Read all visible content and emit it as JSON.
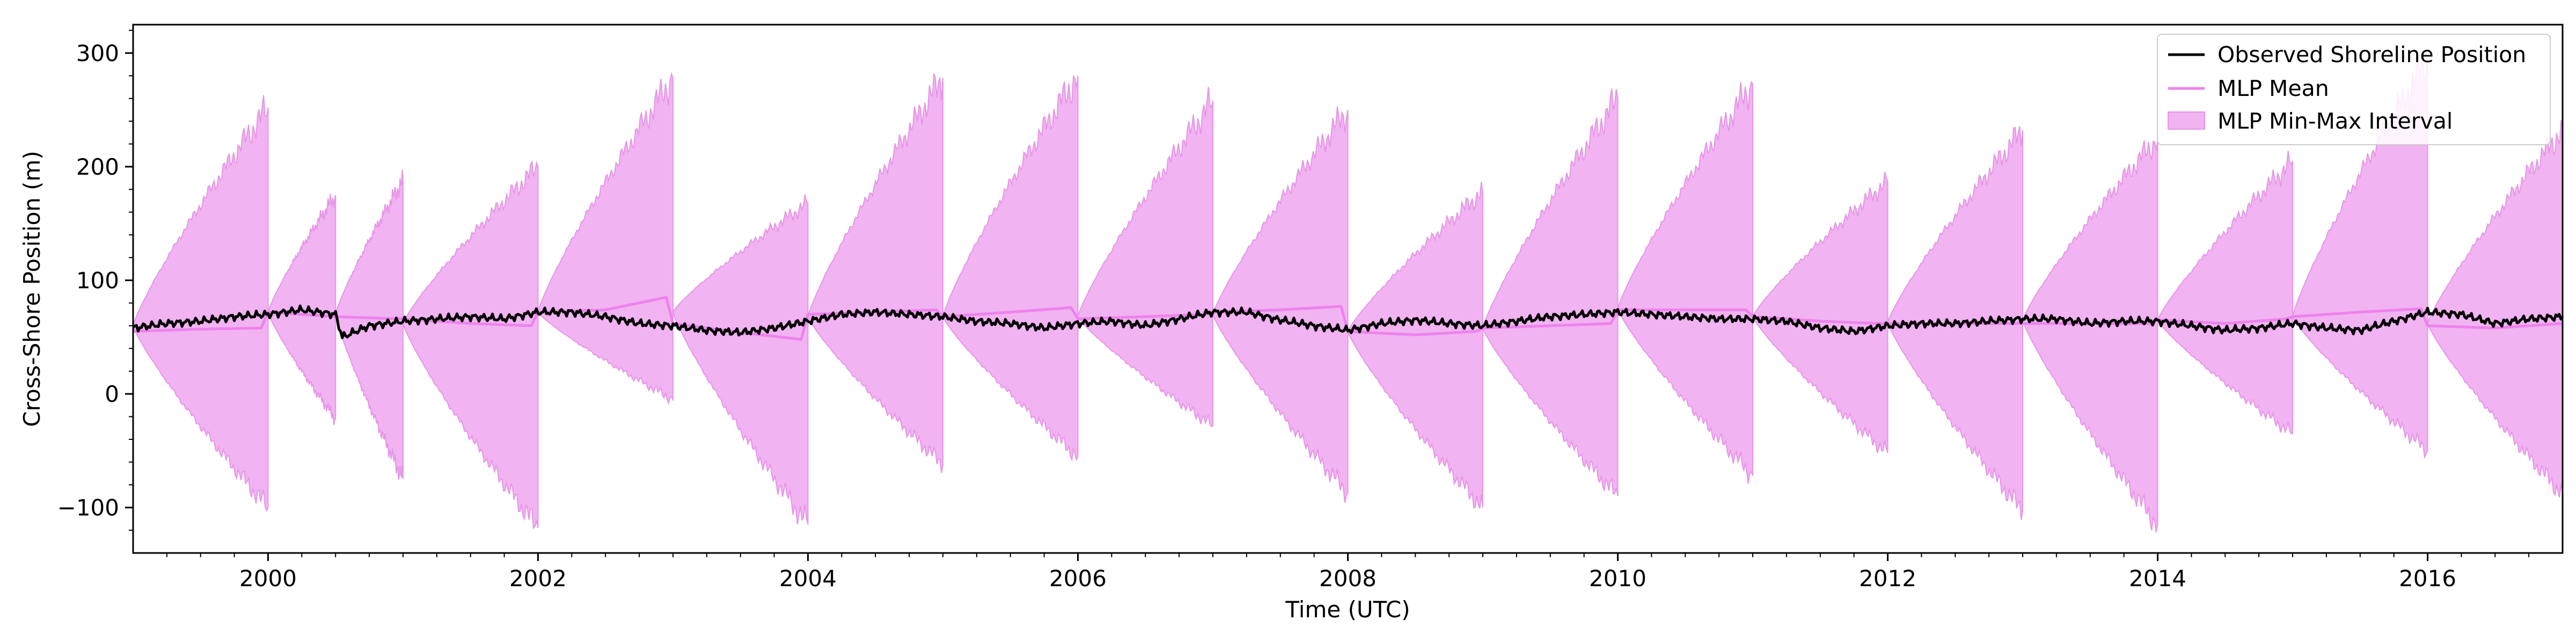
{
  "chart_data": {
    "type": "line",
    "title": "",
    "xlabel": "Time (UTC)",
    "ylabel": "Cross-Shore Position (m)",
    "xlim": [
      1999.0,
      2017.0
    ],
    "ylim": [
      -140,
      325
    ],
    "x_ticks": [
      2000,
      2002,
      2004,
      2006,
      2008,
      2010,
      2012,
      2014,
      2016
    ],
    "x_tick_labels": [
      "2000",
      "2002",
      "2004",
      "2006",
      "2008",
      "2010",
      "2012",
      "2014",
      "2016"
    ],
    "y_ticks": [
      -100,
      0,
      100,
      200,
      300
    ],
    "y_tick_labels": [
      "−100",
      "0",
      "100",
      "200",
      "300"
    ],
    "grid": false,
    "legend_position": "top-right",
    "legend": [
      "Observed Shoreline Position",
      "MLP Mean",
      "MLP Min-Max Interval"
    ],
    "colors": {
      "observed": "#000000",
      "mean": "#ee82ee",
      "interval_fill": "#f1b3f1",
      "interval_edge": "#e695e6"
    },
    "interval_segments": [
      {
        "start": 1999.0,
        "end": 2000.0,
        "start_value": 60,
        "upper_end": 252,
        "lower_end": -100
      },
      {
        "start": 2000.0,
        "end": 2000.5,
        "start_value": 72,
        "upper_end": 175,
        "lower_end": -22
      },
      {
        "start": 2000.5,
        "end": 2001.0,
        "start_value": 70,
        "upper_end": 188,
        "lower_end": -75
      },
      {
        "start": 2001.0,
        "end": 2002.0,
        "start_value": 62,
        "upper_end": 200,
        "lower_end": -118
      },
      {
        "start": 2002.0,
        "end": 2003.0,
        "start_value": 72,
        "upper_end": 278,
        "lower_end": -5
      },
      {
        "start": 2003.0,
        "end": 2004.0,
        "start_value": 72,
        "upper_end": 168,
        "lower_end": -115
      },
      {
        "start": 2004.0,
        "end": 2005.0,
        "start_value": 68,
        "upper_end": 278,
        "lower_end": -62
      },
      {
        "start": 2005.0,
        "end": 2006.0,
        "start_value": 68,
        "upper_end": 280,
        "lower_end": -55
      },
      {
        "start": 2006.0,
        "end": 2007.0,
        "start_value": 68,
        "upper_end": 258,
        "lower_end": -28
      },
      {
        "start": 2007.0,
        "end": 2008.0,
        "start_value": 70,
        "upper_end": 250,
        "lower_end": -87
      },
      {
        "start": 2008.0,
        "end": 2009.0,
        "start_value": 55,
        "upper_end": 178,
        "lower_end": -100
      },
      {
        "start": 2009.0,
        "end": 2010.0,
        "start_value": 58,
        "upper_end": 260,
        "lower_end": -90
      },
      {
        "start": 2010.0,
        "end": 2011.0,
        "start_value": 75,
        "upper_end": 273,
        "lower_end": -72
      },
      {
        "start": 2011.0,
        "end": 2012.0,
        "start_value": 68,
        "upper_end": 187,
        "lower_end": -52
      },
      {
        "start": 2012.0,
        "end": 2013.0,
        "start_value": 63,
        "upper_end": 232,
        "lower_end": -103
      },
      {
        "start": 2013.0,
        "end": 2014.0,
        "start_value": 65,
        "upper_end": 225,
        "lower_end": -115
      },
      {
        "start": 2014.0,
        "end": 2015.0,
        "start_value": 65,
        "upper_end": 205,
        "lower_end": -35
      },
      {
        "start": 2015.0,
        "end": 2016.0,
        "start_value": 68,
        "upper_end": 295,
        "lower_end": -50
      },
      {
        "start": 2016.0,
        "end": 2017.0,
        "start_value": 62,
        "upper_end": 232,
        "lower_end": -88
      }
    ],
    "series": [
      {
        "name": "Observed Shoreline Position",
        "x": [
          1999.0,
          1999.25,
          1999.5,
          1999.75,
          2000.0,
          2000.25,
          2000.5,
          2000.55,
          2000.75,
          2001.0,
          2001.25,
          2001.5,
          2001.75,
          2002.0,
          2002.25,
          2002.5,
          2002.75,
          2003.0,
          2003.25,
          2003.5,
          2003.75,
          2004.0,
          2004.25,
          2004.5,
          2004.75,
          2005.0,
          2005.25,
          2005.5,
          2005.75,
          2006.0,
          2006.25,
          2006.5,
          2006.75,
          2007.0,
          2007.25,
          2007.5,
          2007.75,
          2008.0,
          2008.25,
          2008.5,
          2008.75,
          2009.0,
          2009.25,
          2009.5,
          2009.75,
          2010.0,
          2010.25,
          2010.5,
          2010.75,
          2011.0,
          2011.25,
          2011.5,
          2011.75,
          2012.0,
          2012.25,
          2012.5,
          2012.75,
          2013.0,
          2013.25,
          2013.5,
          2013.75,
          2014.0,
          2014.25,
          2014.5,
          2014.75,
          2015.0,
          2015.25,
          2015.5,
          2015.75,
          2016.0,
          2016.25,
          2016.5,
          2016.75,
          2017.0
        ],
        "values": [
          58,
          62,
          64,
          68,
          70,
          74,
          70,
          50,
          60,
          64,
          66,
          68,
          66,
          72,
          72,
          68,
          62,
          60,
          56,
          54,
          58,
          64,
          70,
          72,
          70,
          68,
          64,
          62,
          58,
          62,
          64,
          60,
          66,
          72,
          72,
          65,
          60,
          56,
          62,
          65,
          62,
          60,
          64,
          68,
          70,
          72,
          70,
          68,
          66,
          66,
          64,
          58,
          55,
          60,
          62,
          62,
          64,
          66,
          66,
          62,
          64,
          64,
          60,
          56,
          58,
          62,
          58,
          56,
          64,
          72,
          70,
          62,
          66,
          68
        ]
      },
      {
        "name": "MLP Mean",
        "x": [
          1999.0,
          1999.5,
          1999.95,
          2000.0,
          2000.5,
          2001.0,
          2001.5,
          2001.95,
          2002.0,
          2002.5,
          2002.95,
          2003.0,
          2003.5,
          2003.95,
          2004.0,
          2004.5,
          2004.95,
          2005.0,
          2005.5,
          2005.95,
          2006.0,
          2006.5,
          2006.95,
          2007.0,
          2007.5,
          2007.95,
          2008.0,
          2008.5,
          2008.95,
          2009.0,
          2009.5,
          2009.95,
          2010.0,
          2010.5,
          2010.95,
          2011.0,
          2011.5,
          2011.95,
          2012.0,
          2012.5,
          2012.95,
          2013.0,
          2013.5,
          2013.95,
          2014.0,
          2014.5,
          2014.95,
          2015.0,
          2015.5,
          2015.95,
          2016.0,
          2016.5,
          2017.0
        ],
        "values": [
          55,
          57,
          58,
          72,
          68,
          66,
          62,
          60,
          72,
          74,
          85,
          62,
          54,
          48,
          70,
          72,
          74,
          68,
          72,
          76,
          66,
          68,
          70,
          72,
          74,
          77,
          55,
          52,
          55,
          58,
          60,
          62,
          74,
          74,
          74,
          68,
          64,
          62,
          62,
          62,
          62,
          62,
          62,
          62,
          65,
          62,
          66,
          68,
          72,
          75,
          60,
          58,
          62
        ]
      }
    ]
  }
}
